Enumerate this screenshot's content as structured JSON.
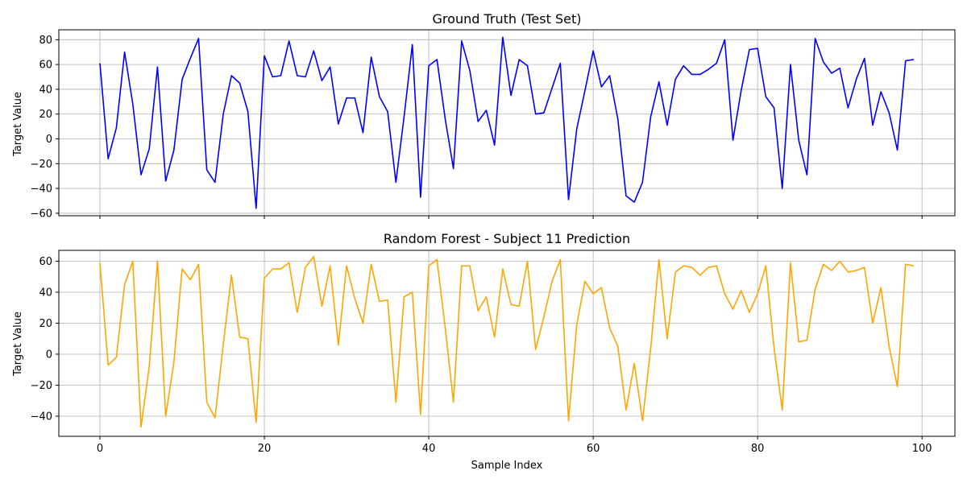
{
  "chart_data": [
    {
      "type": "line",
      "title": "Ground Truth (Test Set)",
      "xlabel": "",
      "ylabel": "Target Value",
      "xlim": [
        -5,
        104
      ],
      "ylim": [
        -62,
        88
      ],
      "xticks": [
        0,
        20,
        40,
        60,
        80,
        100
      ],
      "xtick_labels": [],
      "yticks": [
        -60,
        -40,
        -20,
        0,
        20,
        40,
        60,
        80
      ],
      "ytick_labels": [
        "−60",
        "−40",
        "−20",
        "0",
        "20",
        "40",
        "60",
        "80"
      ],
      "grid": true,
      "color": "#0000ff",
      "series": [
        {
          "x": [
            0,
            1,
            2,
            3,
            4,
            5,
            6,
            7,
            8,
            9,
            10,
            11,
            12,
            13,
            14,
            15,
            16,
            17,
            18,
            19,
            20,
            21,
            22,
            23,
            24,
            25,
            26,
            27,
            28,
            29,
            30,
            31,
            32,
            33,
            34,
            35,
            36,
            37,
            38,
            39,
            40,
            41,
            42,
            43,
            44,
            45,
            46,
            47,
            48,
            49,
            50,
            51,
            52,
            53,
            54,
            55,
            56,
            57,
            58,
            59,
            60,
            61,
            62,
            63,
            64,
            65,
            66,
            67,
            68,
            69,
            70,
            71,
            72,
            73,
            74,
            75,
            76,
            77,
            78,
            79,
            80,
            81,
            82,
            83,
            84,
            85,
            86,
            87,
            88,
            89,
            90,
            91,
            92,
            93,
            94,
            95,
            96,
            97,
            98,
            99
          ],
          "values": [
            61,
            -16,
            9,
            70,
            28,
            -29,
            -8,
            58,
            -34,
            -9,
            48,
            65,
            81,
            -25,
            -35,
            20,
            51,
            45,
            22,
            -56,
            67,
            50,
            51,
            79,
            51,
            50,
            71,
            47,
            58,
            12,
            33,
            33,
            5,
            66,
            34,
            22,
            -35,
            18,
            76,
            -47,
            59,
            64,
            16,
            -24,
            79,
            55,
            14,
            23,
            -5,
            82,
            35,
            64,
            59,
            20,
            21,
            41,
            61,
            -49,
            8,
            39,
            71,
            42,
            51,
            16,
            -46,
            -51,
            -35,
            18,
            46,
            11,
            48,
            59,
            52,
            52,
            56,
            61,
            80,
            -1,
            39,
            72,
            73,
            34,
            25,
            -40,
            60,
            -1,
            -29,
            81,
            62,
            53,
            57,
            25,
            48,
            65,
            11,
            38,
            21,
            -9,
            63,
            64
          ]
        }
      ]
    },
    {
      "type": "line",
      "title": "Random Forest - Subject 11 Prediction",
      "xlabel": "Sample Index",
      "ylabel": "Target Value",
      "xlim": [
        -5,
        104
      ],
      "ylim": [
        -53,
        67
      ],
      "xticks": [
        0,
        20,
        40,
        60,
        80,
        100
      ],
      "xtick_labels": [
        "0",
        "20",
        "40",
        "60",
        "80",
        "100"
      ],
      "yticks": [
        -40,
        -20,
        0,
        20,
        40,
        60
      ],
      "ytick_labels": [
        "−40",
        "−20",
        "0",
        "20",
        "40",
        "60"
      ],
      "grid": true,
      "color": "#ffa500",
      "series": [
        {
          "x": [
            0,
            1,
            2,
            3,
            4,
            5,
            6,
            7,
            8,
            9,
            10,
            11,
            12,
            13,
            14,
            15,
            16,
            17,
            18,
            19,
            20,
            21,
            22,
            23,
            24,
            25,
            26,
            27,
            28,
            29,
            30,
            31,
            32,
            33,
            34,
            35,
            36,
            37,
            38,
            39,
            40,
            41,
            42,
            43,
            44,
            45,
            46,
            47,
            48,
            49,
            50,
            51,
            52,
            53,
            54,
            55,
            56,
            57,
            58,
            59,
            60,
            61,
            62,
            63,
            64,
            65,
            66,
            67,
            68,
            69,
            70,
            71,
            72,
            73,
            74,
            75,
            76,
            77,
            78,
            79,
            80,
            81,
            82,
            83,
            84,
            85,
            86,
            87,
            88,
            89,
            90,
            91,
            92,
            93,
            94,
            95,
            96,
            97,
            98,
            99
          ],
          "values": [
            59,
            -7,
            -2,
            45,
            60,
            -47,
            -8,
            60,
            -40,
            -5,
            55,
            48,
            58,
            -31,
            -41,
            6,
            51,
            11,
            10,
            -44,
            49,
            55,
            55,
            59,
            27,
            56,
            63,
            31,
            57,
            6,
            57,
            36,
            20,
            58,
            34,
            35,
            -31,
            37,
            40,
            -39,
            57,
            61,
            17,
            -31,
            57,
            57,
            28,
            37,
            11,
            55,
            32,
            31,
            60,
            3,
            24,
            47,
            61,
            -43,
            19,
            47,
            39,
            43,
            17,
            5,
            -36,
            -6,
            -43,
            4,
            61,
            10,
            53,
            57,
            56,
            51,
            56,
            57,
            39,
            29,
            41,
            27,
            39,
            57,
            4,
            -36,
            59,
            8,
            9,
            42,
            58,
            54,
            60,
            53,
            54,
            56,
            20,
            43,
            5,
            -21,
            58,
            57
          ]
        }
      ]
    }
  ]
}
